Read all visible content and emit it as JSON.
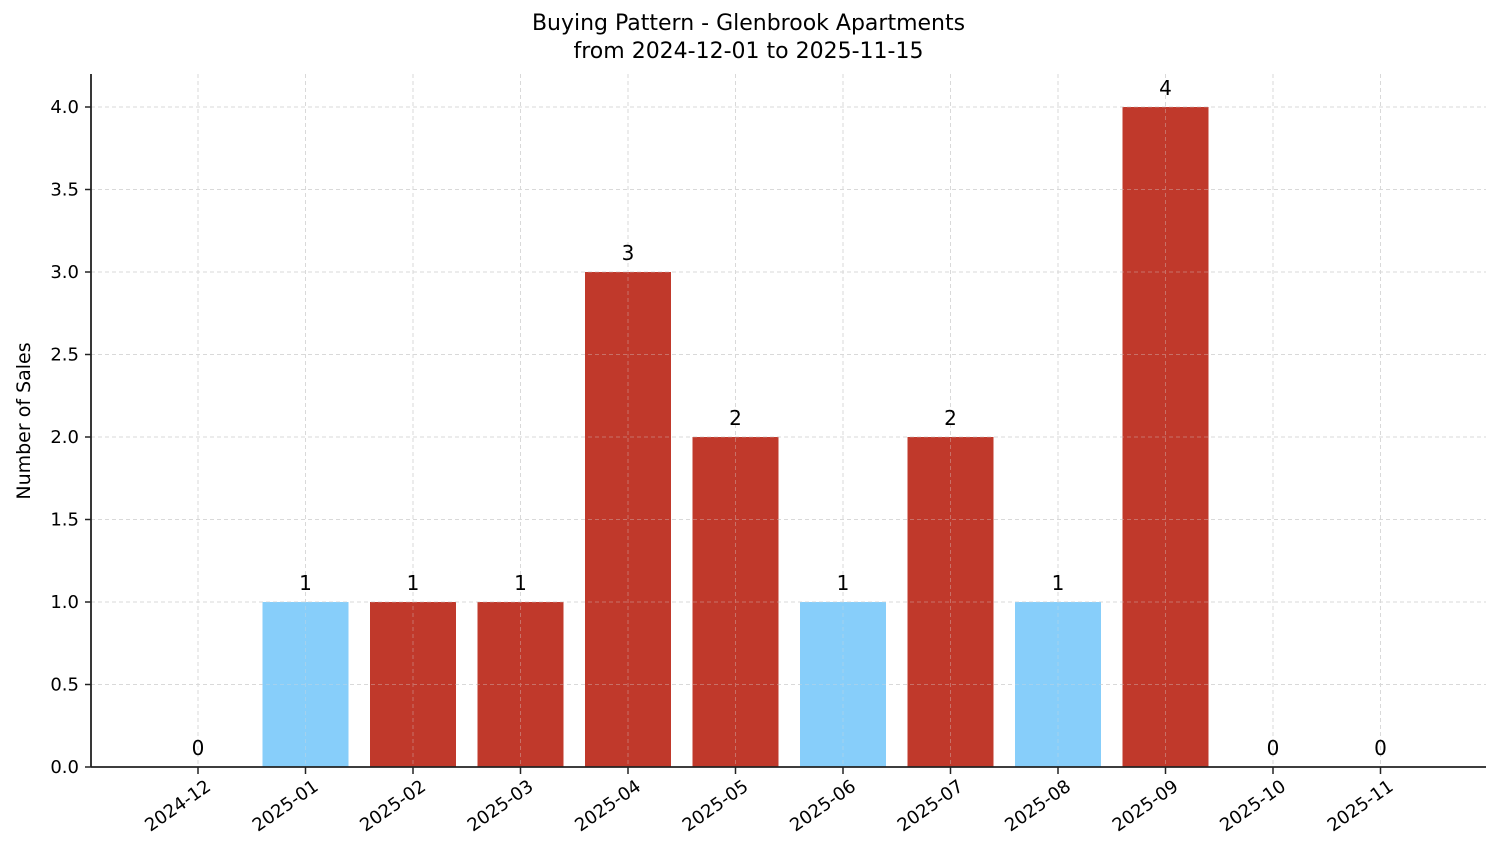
{
  "chart_data": {
    "type": "bar",
    "title": "Buying Pattern - Glenbrook Apartments",
    "subtitle": "from 2024-12-01 to 2025-11-15",
    "xlabel": "",
    "ylabel": "Number of Sales",
    "ylim": [
      0,
      4.2
    ],
    "yticks": [
      "0.0",
      "0.5",
      "1.0",
      "1.5",
      "2.0",
      "2.5",
      "3.0",
      "3.5",
      "4.0"
    ],
    "grid": true,
    "categories": [
      "2024-12",
      "2025-01",
      "2025-02",
      "2025-03",
      "2025-04",
      "2025-05",
      "2025-06",
      "2025-07",
      "2025-08",
      "2025-09",
      "2025-10",
      "2025-11"
    ],
    "values": [
      0,
      1,
      1,
      1,
      3,
      2,
      1,
      2,
      1,
      4,
      0,
      0
    ],
    "bar_colors": [
      "#87CEFA",
      "#87CEFA",
      "#C0392B",
      "#C0392B",
      "#C0392B",
      "#C0392B",
      "#87CEFA",
      "#C0392B",
      "#87CEFA",
      "#C0392B",
      "#87CEFA",
      "#87CEFA"
    ],
    "data_labels": [
      "0",
      "1",
      "1",
      "1",
      "3",
      "2",
      "1",
      "2",
      "1",
      "4",
      "0",
      "0"
    ]
  },
  "colors": {
    "high": "#C0392B",
    "low": "#87CEFA",
    "grid": "#d9d9d9",
    "axis": "#222222"
  }
}
